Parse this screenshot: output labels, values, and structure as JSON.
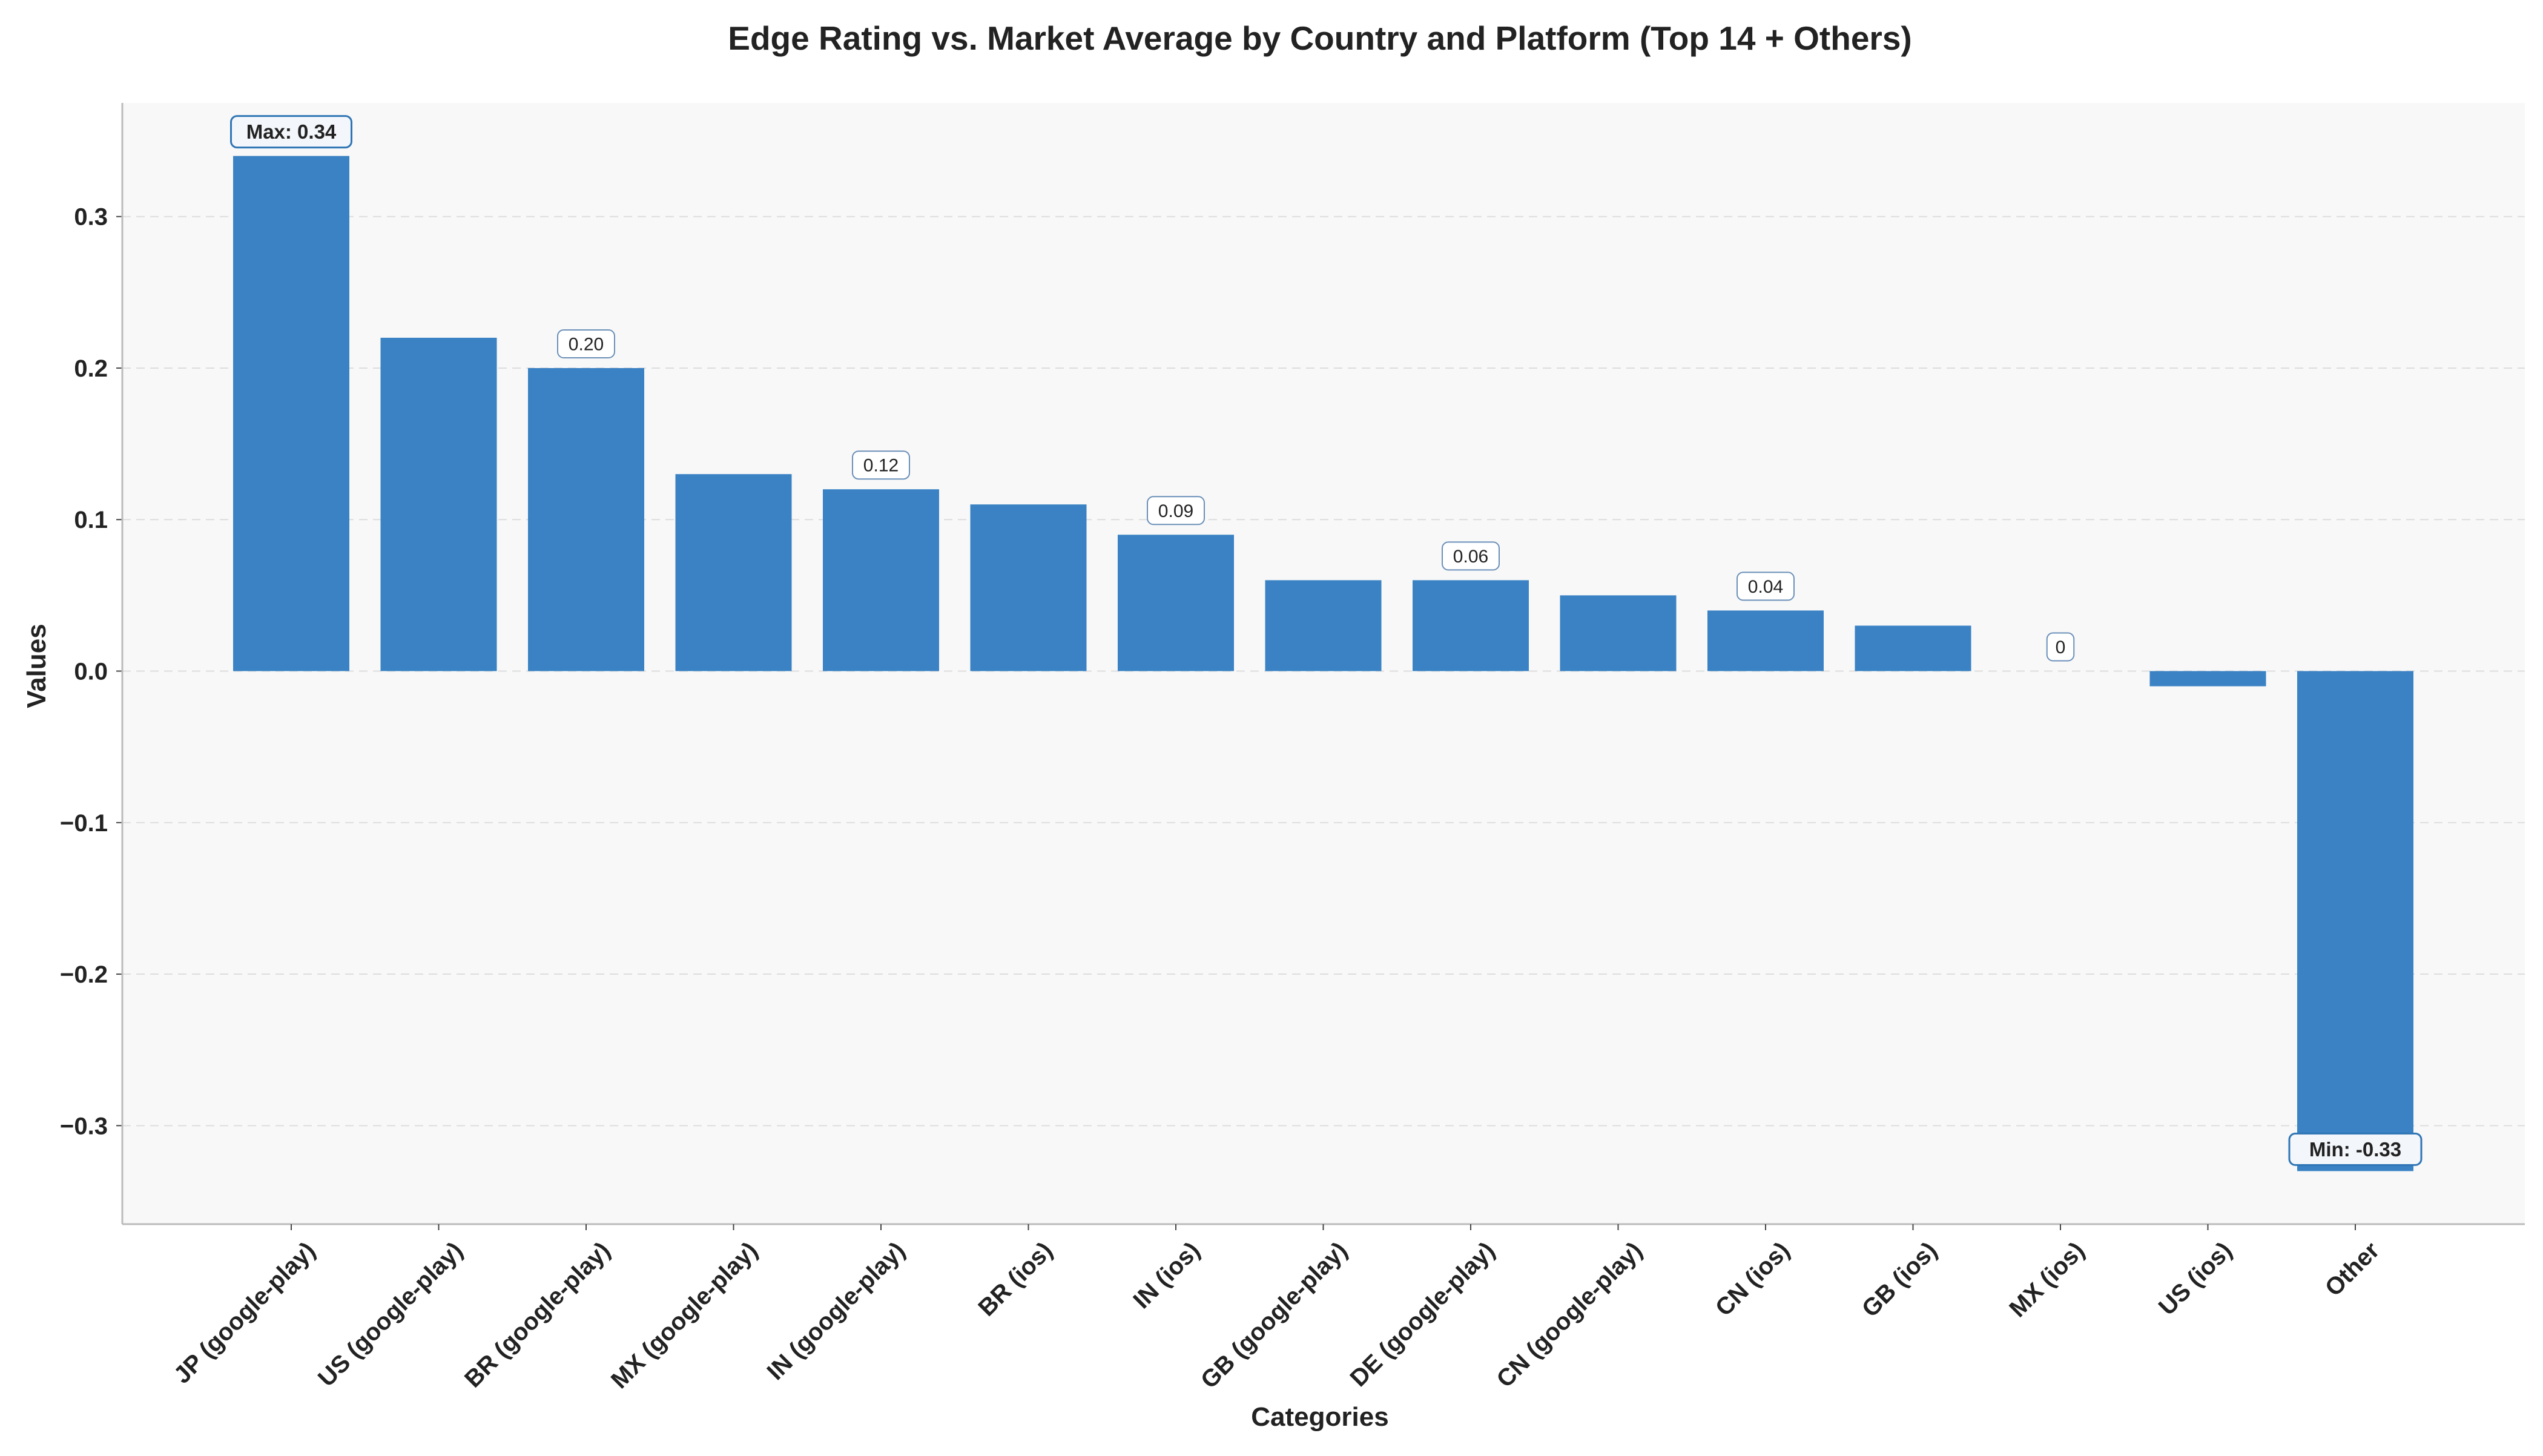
{
  "chart_data": {
    "type": "bar",
    "title": "Edge Rating vs. Market Average by Country and Platform (Top 14 + Others)",
    "xlabel": "Categories",
    "ylabel": "Values",
    "categories": [
      "JP (google-play)",
      "US (google-play)",
      "BR (google-play)",
      "MX (google-play)",
      "IN (google-play)",
      "BR (ios)",
      "IN (ios)",
      "GB (google-play)",
      "DE (google-play)",
      "CN (google-play)",
      "CN (ios)",
      "GB (ios)",
      "MX (ios)",
      "US (ios)",
      "Other"
    ],
    "values": [
      0.34,
      0.22,
      0.2,
      0.13,
      0.12,
      0.11,
      0.09,
      0.06,
      0.06,
      0.05,
      0.04,
      0.03,
      0.0,
      -0.01,
      -0.33
    ],
    "ylim": [
      -0.365,
      0.375
    ],
    "yticks": [
      -0.3,
      -0.2,
      -0.1,
      0.0,
      0.1,
      0.2,
      0.3
    ],
    "ytick_labels": [
      "−0.3",
      "−0.2",
      "−0.1",
      "0.0",
      "0.1",
      "0.2",
      "0.3"
    ],
    "grid": true,
    "bar_color": "#3a82c4",
    "plot_background": "#f8f8f8",
    "annotations": [
      {
        "index": 0,
        "text": "Max: 0.34",
        "style": "extreme"
      },
      {
        "index": 2,
        "text": "0.20",
        "style": "value"
      },
      {
        "index": 4,
        "text": "0.12",
        "style": "value"
      },
      {
        "index": 6,
        "text": "0.09",
        "style": "value"
      },
      {
        "index": 8,
        "text": "0.06",
        "style": "value"
      },
      {
        "index": 10,
        "text": "0.04",
        "style": "value"
      },
      {
        "index": 12,
        "text": "0",
        "style": "value"
      },
      {
        "index": 14,
        "text": "Min: -0.33",
        "style": "extreme"
      }
    ]
  }
}
